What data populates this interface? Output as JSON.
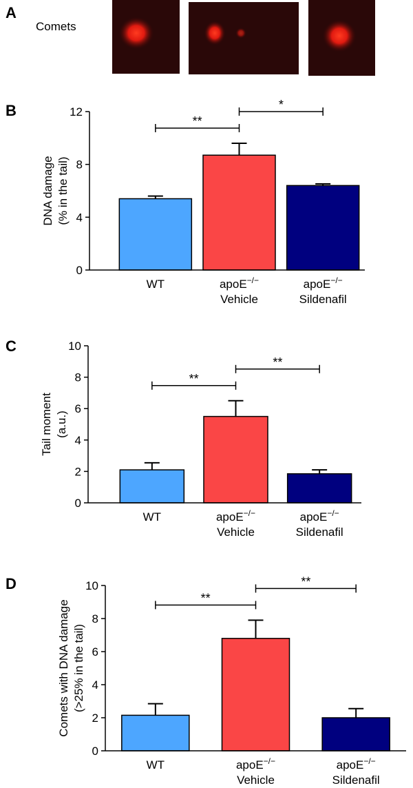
{
  "panel_a": {
    "label": "A",
    "title": "Comets"
  },
  "chart_data": [
    {
      "type": "bar",
      "panel": "B",
      "ylabel": [
        "DNA damage",
        "(% in the tail)"
      ],
      "categories": [
        {
          "text": "WT"
        },
        {
          "text": "apoE",
          "sup": "−/−",
          "line2": "Vehicle"
        },
        {
          "text": "apoE",
          "sup": "−/−",
          "line2": "Sildenafil"
        }
      ],
      "values": [
        5.4,
        8.7,
        6.4
      ],
      "errors": [
        0.2,
        0.9,
        0.12
      ],
      "colors": [
        "#4da6ff",
        "#fa4646",
        "#00007f"
      ],
      "ylim": [
        0,
        12
      ],
      "yticks": [
        0,
        4,
        8,
        12
      ],
      "annotations": [
        {
          "from": 0,
          "to": 1,
          "label": "**"
        },
        {
          "from": 1,
          "to": 2,
          "label": "*"
        }
      ]
    },
    {
      "type": "bar",
      "panel": "C",
      "ylabel": [
        "Tail moment",
        "(a.u.)"
      ],
      "categories": [
        {
          "text": "WT"
        },
        {
          "text": "apoE",
          "sup": "−/−",
          "line2": "Vehicle"
        },
        {
          "text": "apoE",
          "sup": "−/−",
          "line2": "Sildenafil"
        }
      ],
      "values": [
        2.1,
        5.5,
        1.85
      ],
      "errors": [
        0.45,
        1.0,
        0.25
      ],
      "colors": [
        "#4da6ff",
        "#fa4646",
        "#00007f"
      ],
      "ylim": [
        0,
        10
      ],
      "yticks": [
        0,
        2,
        4,
        6,
        8,
        10
      ],
      "annotations": [
        {
          "from": 0,
          "to": 1,
          "label": "**"
        },
        {
          "from": 1,
          "to": 2,
          "label": "**"
        }
      ]
    },
    {
      "type": "bar",
      "panel": "D",
      "ylabel": [
        "Comets with DNA damage",
        "(>25% in the tail)"
      ],
      "categories": [
        {
          "text": "WT"
        },
        {
          "text": "apoE",
          "sup": "−/−",
          "line2": "Vehicle"
        },
        {
          "text": "apoE",
          "sup": "−/−",
          "line2": "Sildenafil"
        }
      ],
      "values": [
        2.15,
        6.8,
        2.0
      ],
      "errors": [
        0.7,
        1.1,
        0.55
      ],
      "colors": [
        "#4da6ff",
        "#fa4646",
        "#00007f"
      ],
      "ylim": [
        0,
        10
      ],
      "yticks": [
        0,
        2,
        4,
        6,
        8,
        10
      ],
      "annotations": [
        {
          "from": 0,
          "to": 1,
          "label": "**"
        },
        {
          "from": 1,
          "to": 2,
          "label": "**"
        }
      ]
    }
  ]
}
